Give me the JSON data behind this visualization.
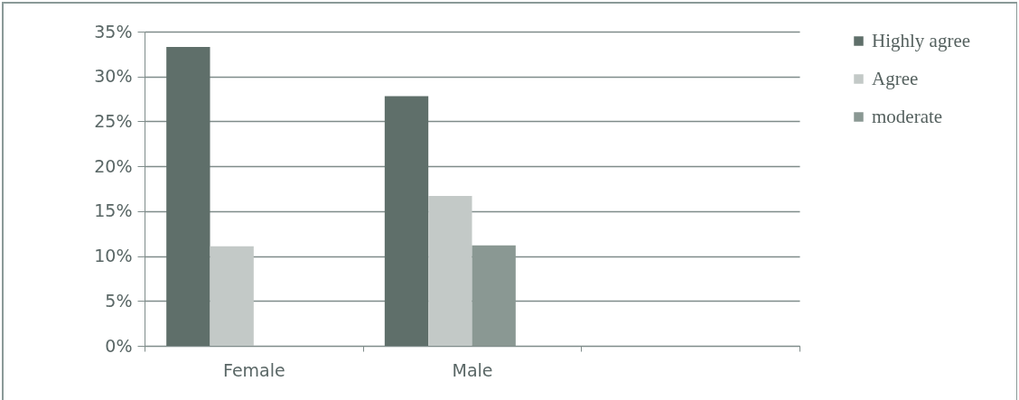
{
  "chart_data": {
    "type": "bar",
    "categories": [
      "Female",
      "Male",
      null
    ],
    "series": [
      {
        "name": "Highly agree",
        "color": "#5f6f6a",
        "values": [
          33.3,
          27.8,
          null
        ]
      },
      {
        "name": "Agree",
        "color": "#c3c9c7",
        "values": [
          11.1,
          16.7,
          null
        ]
      },
      {
        "name": "moderate",
        "color": "#8a9893",
        "values": [
          null,
          11.2,
          null
        ]
      }
    ],
    "ylim": [
      0,
      35
    ],
    "yticks": [
      {
        "value": 0,
        "label": "0%"
      },
      {
        "value": 5,
        "label": "5%"
      },
      {
        "value": 10,
        "label": "10%"
      },
      {
        "value": 15,
        "label": "15%"
      },
      {
        "value": 20,
        "label": "20%"
      },
      {
        "value": 25,
        "label": "25%"
      },
      {
        "value": 30,
        "label": "30%"
      },
      {
        "value": 35,
        "label": "35%"
      }
    ],
    "grid": "y",
    "legend": "right"
  }
}
